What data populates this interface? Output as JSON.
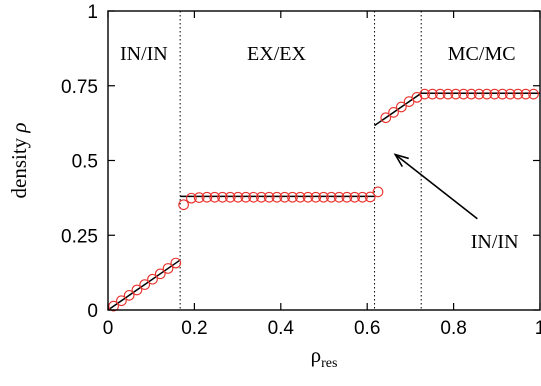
{
  "chart_data": {
    "type": "scatter",
    "title": "",
    "xlabel_main": "ρ",
    "xlabel_sub": "res",
    "ylabel_text": "density ",
    "ylabel_symbol": "ρ",
    "xlim": [
      0,
      1
    ],
    "ylim": [
      0,
      1
    ],
    "x_ticks": [
      0,
      0.2,
      0.4,
      0.6,
      0.8,
      1
    ],
    "x_tick_labels": [
      "0",
      "0.2",
      "0.4",
      "0.6",
      "0.8",
      "1"
    ],
    "y_ticks": [
      0,
      0.25,
      0.5,
      0.75,
      1
    ],
    "y_tick_labels": [
      "0",
      "0.25",
      "0.5",
      "0.75",
      "1"
    ],
    "phase_boundaries": [
      0.167,
      0.617,
      0.725
    ],
    "region_labels": [
      {
        "text": "IN/IN",
        "x": 0.083,
        "y": 0.86
      },
      {
        "text": "EX/EX",
        "x": 0.39,
        "y": 0.86
      },
      {
        "text": "MC/MC",
        "x": 0.865,
        "y": 0.86
      },
      {
        "text": "IN/IN",
        "x": 0.895,
        "y": 0.23
      }
    ],
    "arrow": {
      "from": [
        0.855,
        0.305
      ],
      "to": [
        0.665,
        0.52
      ]
    },
    "theory_segments": [
      {
        "x": [
          0,
          0.167
        ],
        "y": [
          0,
          0.167
        ]
      },
      {
        "x": [
          0.167,
          0.617
        ],
        "y": [
          0.38,
          0.38
        ]
      },
      {
        "x": [
          0.617,
          0.725
        ],
        "y": [
          0.617,
          0.725
        ]
      },
      {
        "x": [
          0.725,
          1.0
        ],
        "y": [
          0.725,
          0.725
        ]
      }
    ],
    "series": [
      {
        "x": [
          0.013,
          0.031,
          0.049,
          0.067,
          0.085,
          0.103,
          0.121,
          0.139,
          0.157,
          0.175,
          0.193,
          0.211,
          0.229,
          0.247,
          0.265,
          0.283,
          0.301,
          0.319,
          0.337,
          0.355,
          0.373,
          0.391,
          0.409,
          0.427,
          0.445,
          0.463,
          0.481,
          0.499,
          0.517,
          0.535,
          0.553,
          0.571,
          0.589,
          0.607,
          0.625,
          0.643,
          0.661,
          0.679,
          0.697,
          0.715,
          0.733,
          0.751,
          0.769,
          0.787,
          0.805,
          0.823,
          0.841,
          0.859,
          0.877,
          0.895,
          0.913,
          0.931,
          0.949,
          0.967,
          0.985
        ],
        "y": [
          0.013,
          0.031,
          0.049,
          0.067,
          0.085,
          0.103,
          0.121,
          0.139,
          0.157,
          0.352,
          0.374,
          0.376,
          0.377,
          0.377,
          0.377,
          0.377,
          0.377,
          0.377,
          0.377,
          0.377,
          0.377,
          0.377,
          0.377,
          0.377,
          0.377,
          0.377,
          0.377,
          0.377,
          0.377,
          0.377,
          0.377,
          0.377,
          0.377,
          0.378,
          0.395,
          0.643,
          0.661,
          0.679,
          0.697,
          0.711,
          0.722,
          0.722,
          0.722,
          0.722,
          0.722,
          0.722,
          0.722,
          0.722,
          0.722,
          0.722,
          0.722,
          0.722,
          0.722,
          0.722,
          0.722
        ]
      }
    ],
    "colors": {
      "markers": "#e8302a",
      "lines": "#000000",
      "boundaries": "#000000"
    }
  }
}
